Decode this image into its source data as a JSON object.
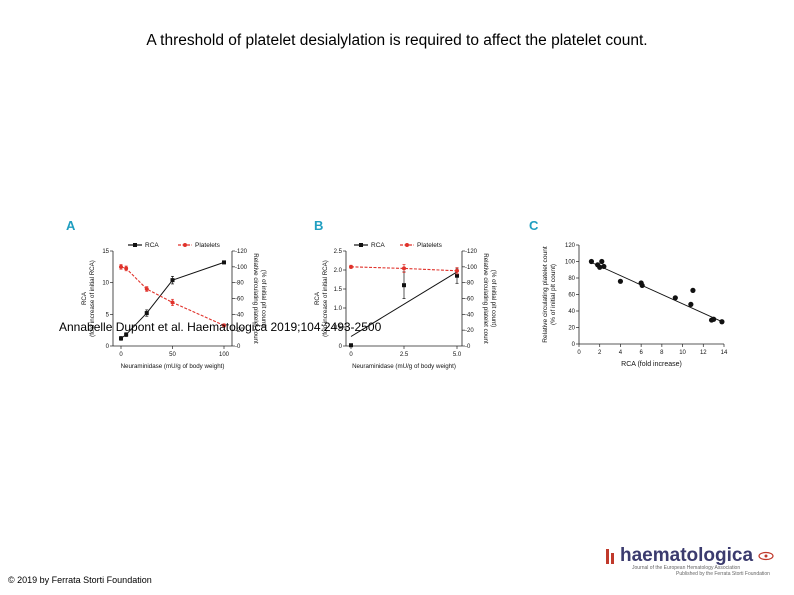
{
  "slide": {
    "title": "A threshold of platelet desialylation is required to affect the platelet count.",
    "citation": "Annabelle Dupont et al. Haematologica 2019;104:2493-2500",
    "copyright": "© 2019 by Ferrata Storti Foundation"
  },
  "logo": {
    "name": "haematologica",
    "subtitle1": "Journal of the European Hematology Association",
    "subtitle2": "Published by the Ferrata Storti Foundation"
  },
  "colors": {
    "rca": "#111111",
    "platelets": "#e0322b"
  },
  "chart_data": [
    {
      "panel": "A",
      "type": "line",
      "legend": [
        "RCA",
        "Platelets"
      ],
      "xlabel": "Neuraminidase (mU/g of body weight)",
      "ylabel_left": "RCA (fold increase of initial RCA)",
      "ylabel_right": "Relative circulating platelet count (% of initial plt count)",
      "xlim": [
        0,
        100
      ],
      "ylim_left": [
        0,
        15
      ],
      "ylim_right": [
        0,
        120
      ],
      "x_ticks": [
        "0",
        "50",
        "100"
      ],
      "y_left_ticks": [
        "0",
        "5",
        "10",
        "15"
      ],
      "y_right_ticks": [
        "0",
        "20",
        "40",
        "60",
        "80",
        "100",
        "120"
      ],
      "series": [
        {
          "name": "RCA",
          "axis": "left",
          "x": [
            0,
            5,
            25,
            50,
            100
          ],
          "values": [
            1.2,
            1.8,
            5.2,
            10.4,
            13.2
          ],
          "err": [
            0.3,
            0.3,
            0.5,
            0.6,
            0.2
          ]
        },
        {
          "name": "Platelets",
          "axis": "right",
          "x": [
            0,
            5,
            25,
            50,
            100
          ],
          "values": [
            100,
            98,
            72,
            55,
            26
          ],
          "err": [
            3,
            3,
            3,
            4,
            2
          ]
        }
      ]
    },
    {
      "panel": "B",
      "type": "line",
      "legend": [
        "RCA",
        "Platelets"
      ],
      "xlabel": "Neuraminidase (mU/g of body weight)",
      "ylabel_left": "RCA (fold increase of initial RCA)",
      "ylabel_right": "Relative circulating platelet count (% of initial plt count)",
      "xlim": [
        0,
        5
      ],
      "ylim_left": [
        0,
        2.5
      ],
      "ylim_right": [
        0,
        120
      ],
      "x_ticks": [
        "0",
        "2.5",
        "5.0"
      ],
      "y_left_ticks": [
        "0",
        "0.5",
        "1.0",
        "1.5",
        "2.0",
        "2.5"
      ],
      "y_right_ticks": [
        "0",
        "20",
        "40",
        "60",
        "80",
        "100",
        "120"
      ],
      "series": [
        {
          "name": "RCA",
          "axis": "left",
          "x": [
            0,
            2.5,
            5
          ],
          "values": [
            0.02,
            1.6,
            1.85
          ],
          "err": [
            0.02,
            0.35,
            0.2
          ]
        },
        {
          "name": "Platelets",
          "axis": "right",
          "x": [
            0,
            2.5,
            5
          ],
          "values": [
            100,
            98,
            95
          ],
          "err": [
            2,
            5,
            4
          ]
        }
      ],
      "fit_line": {
        "series": "RCA",
        "x": [
          0,
          5
        ],
        "values": [
          0.25,
          1.95
        ]
      }
    },
    {
      "panel": "C",
      "type": "scatter",
      "xlabel": "RCA (fold increase)",
      "ylabel": "Relative circulating platelet count (% of initial plt count)",
      "xlim": [
        0,
        14
      ],
      "ylim": [
        0,
        120
      ],
      "x_ticks": [
        "0",
        "2",
        "4",
        "6",
        "8",
        "10",
        "12",
        "14"
      ],
      "y_ticks": [
        "0",
        "20",
        "40",
        "60",
        "80",
        "100",
        "120"
      ],
      "x": [
        1.2,
        1.8,
        2.0,
        2.2,
        2.4,
        4.0,
        6.0,
        6.1,
        9.3,
        10.8,
        11.0,
        12.8,
        13.0,
        13.8
      ],
      "values": [
        100,
        96,
        93,
        100,
        94,
        76,
        74,
        71,
        56,
        48,
        65,
        29,
        30,
        27
      ],
      "fit_line": {
        "x": [
          1.0,
          14.0
        ],
        "values": [
          100,
          26
        ]
      }
    }
  ]
}
